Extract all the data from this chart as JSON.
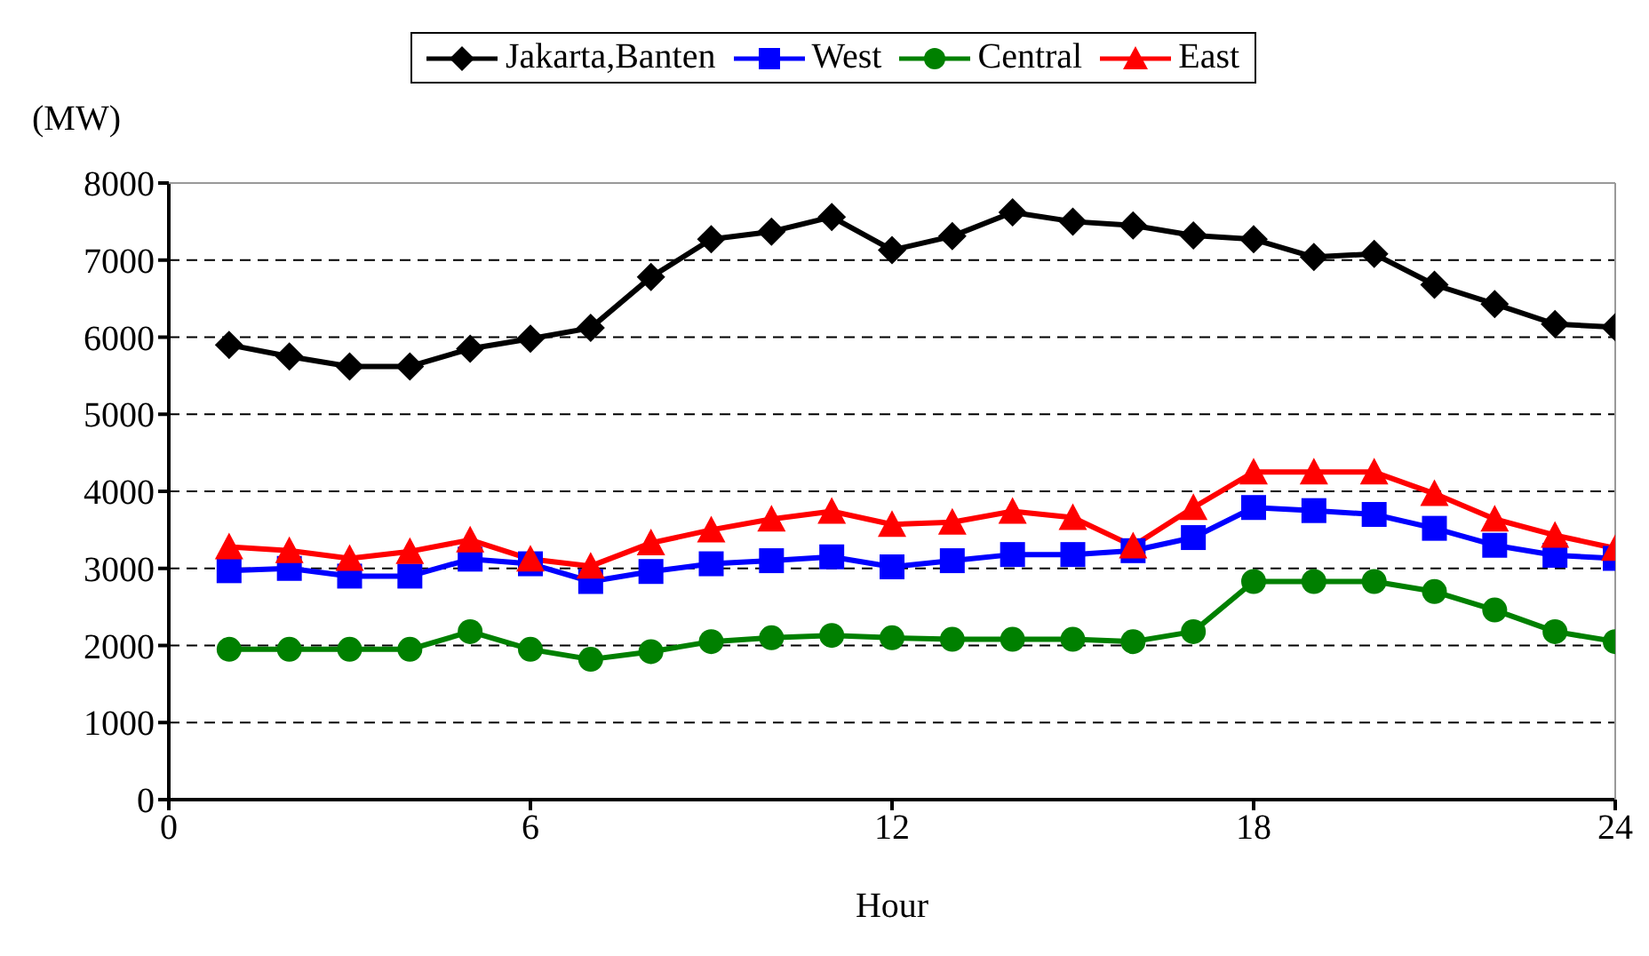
{
  "chart_data": {
    "type": "line",
    "xlabel": "Hour",
    "ylabel": "(MW)",
    "x": [
      1,
      2,
      3,
      4,
      5,
      6,
      7,
      8,
      9,
      10,
      11,
      12,
      13,
      14,
      15,
      16,
      17,
      18,
      19,
      20,
      21,
      22,
      23,
      24
    ],
    "series": [
      {
        "name": "Jakarta,Banten",
        "color": "#000000",
        "marker": "diamond",
        "values": [
          5900,
          5750,
          5620,
          5620,
          5850,
          5980,
          6120,
          6780,
          7270,
          7370,
          7560,
          7130,
          7310,
          7620,
          7500,
          7450,
          7320,
          7270,
          7040,
          7080,
          6680,
          6430,
          6170,
          6130
        ]
      },
      {
        "name": "West",
        "color": "#0000ff",
        "marker": "square",
        "values": [
          2970,
          3000,
          2900,
          2900,
          3120,
          3060,
          2830,
          2960,
          3060,
          3100,
          3150,
          3020,
          3100,
          3180,
          3180,
          3230,
          3400,
          3790,
          3750,
          3700,
          3520,
          3300,
          3170,
          3130
        ]
      },
      {
        "name": "Central",
        "color": "#008000",
        "marker": "circle",
        "values": [
          1950,
          1950,
          1950,
          1950,
          2180,
          1950,
          1820,
          1920,
          2050,
          2100,
          2130,
          2100,
          2080,
          2080,
          2080,
          2050,
          2180,
          2830,
          2830,
          2830,
          2700,
          2460,
          2180,
          2050
        ]
      },
      {
        "name": "East",
        "color": "#ff0000",
        "marker": "triangle",
        "values": [
          3280,
          3230,
          3130,
          3220,
          3370,
          3120,
          3030,
          3330,
          3500,
          3640,
          3740,
          3570,
          3600,
          3740,
          3660,
          3290,
          3790,
          4250,
          4250,
          4250,
          3970,
          3640,
          3430,
          3260
        ]
      }
    ],
    "xlim": [
      0,
      24
    ],
    "xticks": [
      0,
      6,
      12,
      18,
      24
    ],
    "ylim": [
      0,
      8000
    ],
    "yticks": [
      0,
      1000,
      2000,
      3000,
      4000,
      5000,
      6000,
      7000,
      8000
    ],
    "grid": "y",
    "legend": "top",
    "line_style": "solid"
  }
}
